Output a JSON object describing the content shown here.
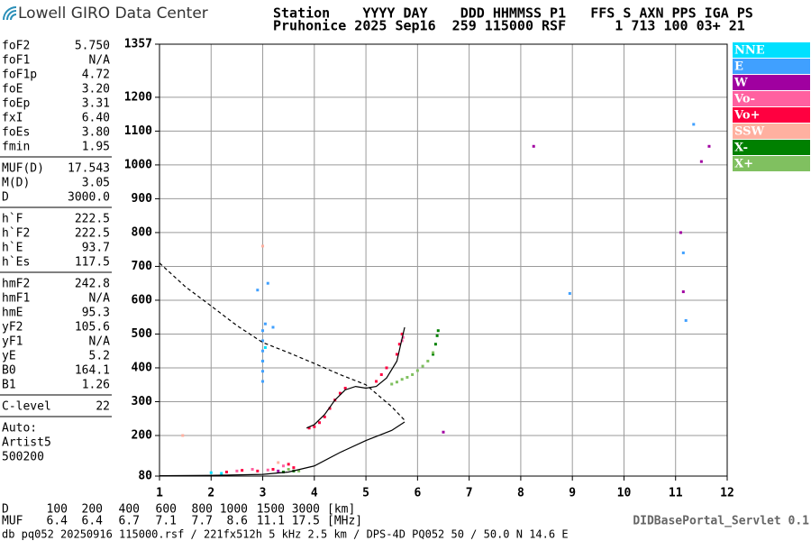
{
  "header": {
    "logo": "Lowell GIRO Data Center",
    "line1": "Station    YYYY DAY    DDD HHMMSS P1   FFS S AXN PPS IGA PS",
    "line2": "Pruhonice 2025 Sep16  259 115000 RSF      1 713 100 03+ 21"
  },
  "params": [
    [
      [
        "foF2",
        "5.750"
      ],
      [
        "foF1",
        "N/A"
      ],
      [
        "foF1p",
        "4.72"
      ],
      [
        "foE",
        "3.20"
      ],
      [
        "foEp",
        "3.31"
      ],
      [
        "fxI",
        "6.40"
      ],
      [
        "foEs",
        "3.80"
      ],
      [
        "fmin",
        "1.95"
      ]
    ],
    [
      [
        "MUF(D)",
        "17.543"
      ],
      [
        "M(D)",
        "3.05"
      ],
      [
        "D",
        "3000.0"
      ]
    ],
    [
      [
        "h`F",
        "222.5"
      ],
      [
        "h`F2",
        "222.5"
      ],
      [
        "h`E",
        "93.7"
      ],
      [
        "h`Es",
        "117.5"
      ]
    ],
    [
      [
        "hmF2",
        "242.8"
      ],
      [
        "hmF1",
        "N/A"
      ],
      [
        "hmE",
        "95.3"
      ],
      [
        "yF2",
        "105.6"
      ],
      [
        "yF1",
        "N/A"
      ],
      [
        "yE",
        "5.2"
      ],
      [
        "B0",
        "164.1"
      ],
      [
        "B1",
        "1.26"
      ]
    ],
    [
      [
        "C-level",
        "22"
      ]
    ],
    [
      [
        "Auto:"
      ],
      [
        "Artist5"
      ],
      [
        "500200"
      ]
    ]
  ],
  "chart_data": {
    "type": "scatter",
    "xlim": [
      1,
      12
    ],
    "xticks": [
      1,
      2,
      3,
      4,
      5,
      6,
      7,
      8,
      9,
      10,
      11,
      12
    ],
    "ylim": [
      80,
      1357
    ],
    "yticks": [
      80,
      200,
      300,
      400,
      500,
      600,
      700,
      800,
      900,
      1000,
      1100,
      1200,
      1357
    ],
    "grid": true,
    "series": [
      {
        "name": "NNE",
        "color": "#00e0ff",
        "x": [
          2.0,
          2.2,
          3.0,
          3.05
        ],
        "y": [
          90,
          88,
          420,
          460
        ]
      },
      {
        "name": "E",
        "color": "#40a0ff",
        "x": [
          3.0,
          3.0,
          3.0,
          3.0,
          3.0,
          3.0,
          3.05,
          3.1,
          3.2,
          2.9,
          8.95,
          11.15,
          11.2,
          11.35
        ],
        "y": [
          360,
          390,
          420,
          450,
          480,
          510,
          530,
          650,
          520,
          630,
          620,
          740,
          540,
          1120
        ]
      },
      {
        "name": "W",
        "color": "#a000a0",
        "x": [
          8.25,
          11.1,
          11.15,
          11.5,
          11.65,
          6.5,
          3.3
        ],
        "y": [
          1055,
          800,
          625,
          1010,
          1055,
          210,
          95
        ]
      },
      {
        "name": "Vo-",
        "color": "#ff60a0",
        "x": [
          2.5,
          2.8,
          3.1,
          3.4,
          5.7,
          5.72
        ],
        "y": [
          95,
          100,
          98,
          110,
          480,
          490
        ]
      },
      {
        "name": "Vo+",
        "color": "#ff0040",
        "x": [
          3.9,
          4.0,
          4.1,
          4.2,
          4.3,
          4.4,
          4.5,
          4.6,
          5.2,
          5.3,
          5.4,
          5.6,
          5.65,
          5.7,
          2.3,
          2.6,
          2.9,
          3.2,
          3.5,
          3.6
        ],
        "y": [
          222,
          226,
          238,
          255,
          280,
          305,
          325,
          340,
          360,
          380,
          400,
          440,
          470,
          500,
          92,
          97,
          95,
          100,
          115,
          105
        ]
      },
      {
        "name": "SSW",
        "color": "#ffb0a0",
        "x": [
          3.0,
          3.3,
          1.45
        ],
        "y": [
          760,
          120,
          200
        ]
      },
      {
        "name": "X-",
        "color": "#008000",
        "x": [
          3.4,
          3.6,
          6.4,
          6.38,
          6.35,
          6.3
        ],
        "y": [
          92,
          95,
          510,
          495,
          470,
          440
        ]
      },
      {
        "name": "X+",
        "color": "#80c060",
        "x": [
          5.5,
          5.6,
          5.7,
          5.8,
          5.9,
          6.0,
          6.1,
          6.2,
          6.3,
          3.5,
          3.7
        ],
        "y": [
          352,
          358,
          366,
          372,
          380,
          392,
          405,
          420,
          445,
          100,
          95
        ]
      }
    ],
    "lines": [
      {
        "style": "solid",
        "x": [
          1,
          2,
          3,
          3.5,
          4,
          4.5,
          5,
          5.5,
          5.75
        ],
        "y": [
          81,
          82,
          85,
          92,
          110,
          150,
          185,
          215,
          240
        ]
      },
      {
        "style": "solid",
        "x": [
          3.85,
          4.0,
          4.2,
          4.4,
          4.6,
          4.8,
          5.0,
          5.2,
          5.4,
          5.6,
          5.75
        ],
        "y": [
          222,
          232,
          262,
          305,
          335,
          345,
          340,
          345,
          370,
          420,
          520
        ]
      },
      {
        "style": "dashed",
        "x": [
          1,
          1.5,
          2,
          2.5,
          3,
          3.5,
          4,
          4.5,
          5,
          5.5,
          5.75
        ],
        "y": [
          710,
          640,
          583,
          525,
          475,
          445,
          413,
          380,
          350,
          285,
          245
        ]
      }
    ]
  },
  "distance_table": {
    "rows": [
      {
        "label": "D",
        "values": [
          100,
          200,
          400,
          600,
          800,
          1000,
          1500,
          3000
        ],
        "unit": "[km]"
      },
      {
        "label": "MUF",
        "values": [
          6.4,
          6.4,
          6.7,
          7.1,
          7.7,
          8.6,
          11.1,
          17.5
        ],
        "unit": "[MHz]"
      }
    ]
  },
  "footer": {
    "file": "db pq052 20250916 115000.rsf / 221fx512h 5 kHz 2.5 km / DPS-4D PQ052 50 / 50.0 N 14.6 E",
    "servlet": "DIDBasePortal_Servlet 0.1"
  }
}
